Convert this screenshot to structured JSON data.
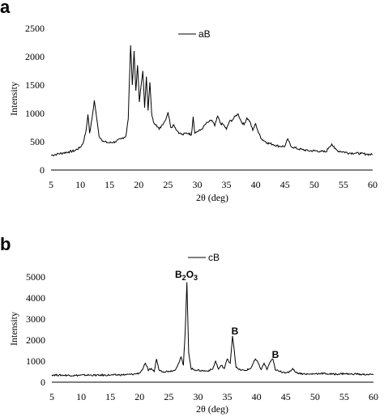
{
  "chart_data": [
    {
      "panel": "a",
      "type": "line",
      "xlabel": "2θ (deg)",
      "ylabel": "Intensity",
      "xlim": [
        5,
        60
      ],
      "ylim": [
        0,
        2500
      ],
      "xticks": [
        5,
        10,
        15,
        20,
        25,
        30,
        35,
        40,
        45,
        50,
        55,
        60
      ],
      "yticks": [
        0,
        500,
        1000,
        1500,
        2000,
        2500
      ],
      "grid": false,
      "legend": {
        "placement": "top-center",
        "entries": [
          "aB"
        ]
      },
      "series": [
        {
          "name": "aB",
          "color": "#000000",
          "x": [
            5,
            6,
            7,
            8,
            9,
            10,
            10.5,
            11,
            11.3,
            11.6,
            12,
            12.4,
            12.7,
            13.2,
            14,
            15,
            16,
            17,
            17.8,
            18.2,
            18.6,
            18.9,
            19.2,
            19.5,
            19.8,
            20.1,
            20.4,
            20.7,
            21.0,
            21.3,
            21.6,
            21.9,
            22.2,
            22.5,
            23,
            23.5,
            24,
            24.5,
            25,
            25.5,
            26,
            26.5,
            27,
            27.5,
            28,
            28.5,
            29,
            29.3,
            29.6,
            30,
            30.5,
            31,
            31.5,
            32,
            32.5,
            33,
            33.5,
            34,
            34.5,
            35,
            35.5,
            36,
            36.5,
            37,
            37.5,
            38,
            38.5,
            39,
            39.5,
            40,
            40.5,
            41,
            42,
            43,
            44,
            45,
            45.5,
            46,
            47,
            48,
            49,
            50,
            51,
            52,
            52.5,
            53,
            53.5,
            54,
            55,
            56,
            57,
            58,
            59,
            60
          ],
          "y": [
            260,
            280,
            300,
            320,
            340,
            400,
            480,
            700,
            980,
            650,
            900,
            1230,
            1000,
            600,
            500,
            480,
            500,
            550,
            600,
            900,
            2200,
            1500,
            2100,
            1400,
            1850,
            1200,
            1500,
            1750,
            1100,
            1650,
            1050,
            1550,
            1000,
            850,
            800,
            720,
            800,
            870,
            1020,
            750,
            800,
            700,
            650,
            620,
            650,
            650,
            620,
            940,
            650,
            680,
            700,
            750,
            820,
            850,
            880,
            780,
            950,
            820,
            800,
            720,
            860,
            880,
            950,
            990,
            860,
            800,
            920,
            860,
            700,
            820,
            650,
            550,
            480,
            450,
            420,
            420,
            550,
            420,
            380,
            360,
            340,
            340,
            330,
            320,
            400,
            460,
            380,
            340,
            320,
            300,
            300,
            290,
            280,
            270
          ]
        }
      ]
    },
    {
      "panel": "b",
      "type": "line",
      "xlabel": "2θ (deg)",
      "ylabel": "Intensity",
      "xlim": [
        5,
        60
      ],
      "ylim": [
        0,
        5000
      ],
      "xticks": [
        5,
        10,
        15,
        20,
        25,
        30,
        35,
        40,
        45,
        50,
        55,
        60
      ],
      "yticks": [
        0,
        1000,
        2000,
        3000,
        4000,
        5000
      ],
      "grid": false,
      "legend": {
        "placement": "top-center",
        "entries": [
          "cB"
        ]
      },
      "annotations": [
        {
          "text": "B",
          "sub": "2",
          "text2": "O",
          "sub2": "3",
          "x": 28.1,
          "y": 4700
        },
        {
          "text": "B",
          "x": 36.1,
          "y": 2150
        },
        {
          "text": "B",
          "x": 42.9,
          "y": 1050
        }
      ],
      "series": [
        {
          "name": "cB",
          "color": "#000000",
          "x": [
            5,
            7,
            9,
            11,
            13,
            15,
            17,
            19,
            20,
            20.6,
            21,
            21.5,
            22,
            22.5,
            22.9,
            23.3,
            24,
            25,
            26,
            26.7,
            27.1,
            27.5,
            27.8,
            28.1,
            28.4,
            28.8,
            29.5,
            30.5,
            31.5,
            32.5,
            33,
            33.5,
            34,
            34.5,
            35,
            35.5,
            35.9,
            36.2,
            36.5,
            37,
            38,
            39,
            39.8,
            40.3,
            40.8,
            41.3,
            41.8,
            42.3,
            42.8,
            43.2,
            43.8,
            44.5,
            45.5,
            46.2,
            46.8,
            48,
            49,
            50,
            51,
            52,
            53,
            54,
            55,
            56,
            57,
            58,
            59,
            60
          ],
          "y": [
            350,
            330,
            320,
            340,
            330,
            340,
            350,
            380,
            430,
            650,
            900,
            550,
            650,
            500,
            1100,
            600,
            500,
            520,
            560,
            900,
            1200,
            800,
            2400,
            4750,
            1400,
            650,
            580,
            550,
            530,
            620,
            1000,
            620,
            800,
            650,
            1100,
            900,
            2200,
            1500,
            700,
            600,
            550,
            650,
            1100,
            900,
            600,
            900,
            600,
            950,
            1100,
            600,
            520,
            480,
            450,
            650,
            450,
            400,
            380,
            400,
            420,
            400,
            380,
            390,
            410,
            380,
            400,
            360,
            370,
            360
          ]
        }
      ]
    }
  ]
}
